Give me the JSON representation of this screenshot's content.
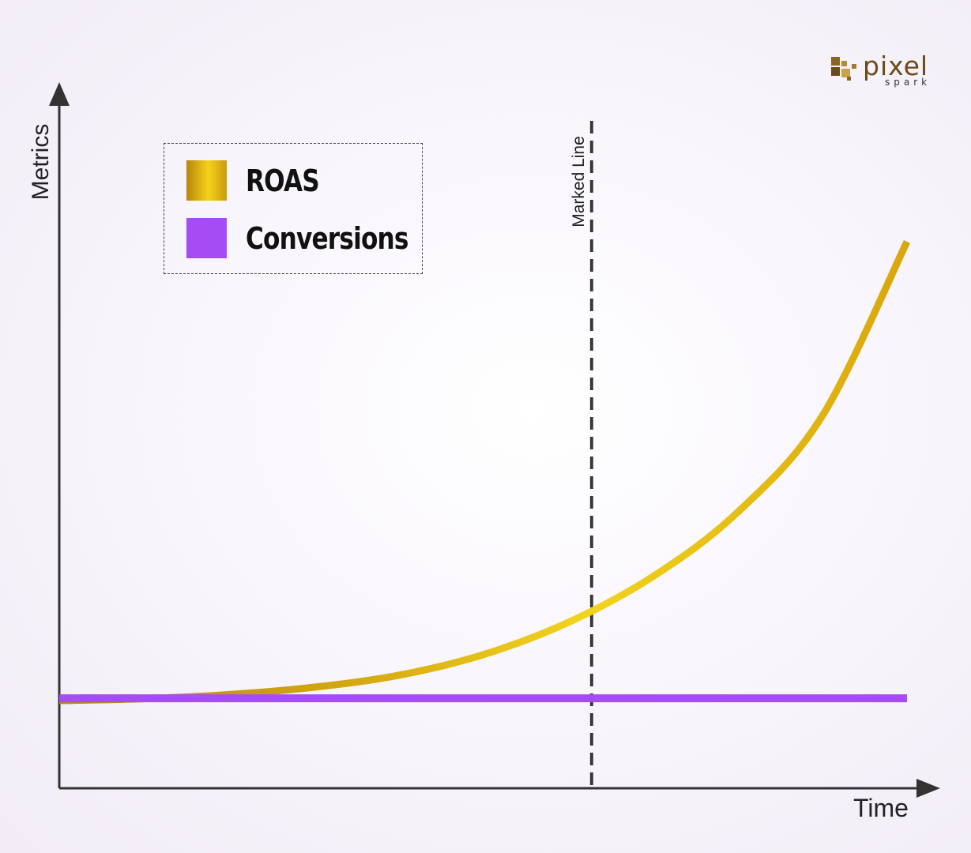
{
  "chart_data": {
    "type": "line",
    "xlabel": "Time",
    "ylabel": "Metrics",
    "x": [
      0,
      0.1,
      0.2,
      0.3,
      0.4,
      0.5,
      0.6,
      0.7,
      0.8,
      0.9,
      1.0
    ],
    "series": [
      {
        "name": "ROAS",
        "color": "#e0b512",
        "values": [
          0,
          0.004,
          0.013,
          0.029,
          0.055,
          0.1,
          0.17,
          0.27,
          0.41,
          0.62,
          1.0
        ]
      },
      {
        "name": "Conversions",
        "color": "#a54cf5",
        "values": [
          0.005,
          0.005,
          0.005,
          0.005,
          0.005,
          0.005,
          0.005,
          0.005,
          0.005,
          0.005,
          0.005
        ]
      }
    ],
    "marker": {
      "label": "Marked Line",
      "x": 0.628
    },
    "grid": false,
    "legend_position": "top-left",
    "ticks": "none"
  },
  "legend": {
    "items": [
      {
        "label": "ROAS",
        "icon": "gold-gradient-swatch"
      },
      {
        "label": "Conversions",
        "icon": "purple-swatch"
      }
    ]
  },
  "logo": {
    "name": "pixel",
    "tagline": "spark"
  }
}
